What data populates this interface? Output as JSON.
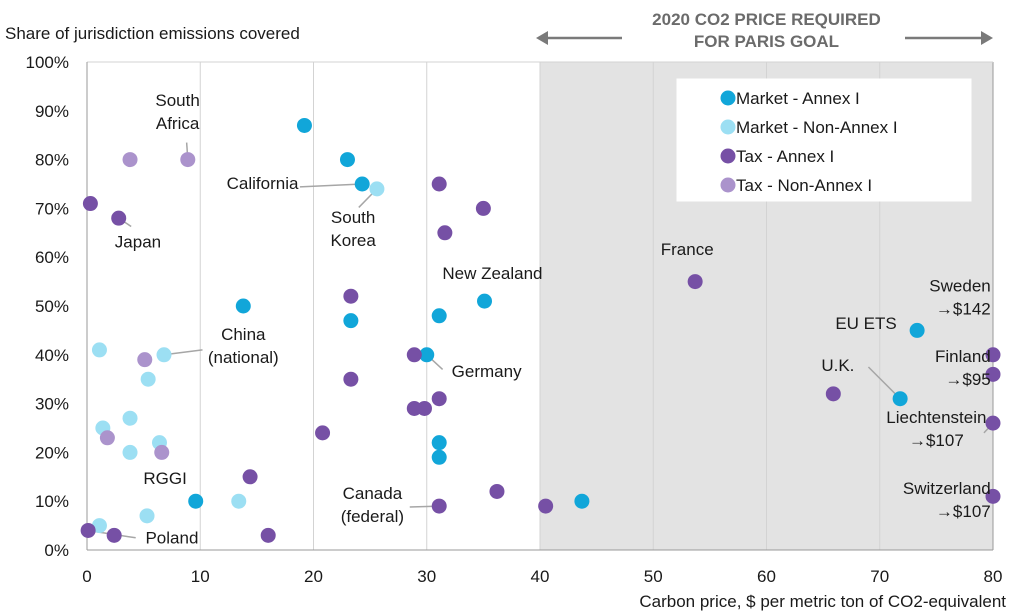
{
  "chart_data": {
    "type": "scatter",
    "title": "",
    "ylabel": "Share of jurisdiction emissions covered",
    "xlabel": "Carbon price, $ per metric ton of CO2-equivalent",
    "xlim": [
      0,
      80
    ],
    "ylim": [
      0,
      100
    ],
    "x_ticks": [
      "0",
      "10",
      "20",
      "30",
      "40",
      "50",
      "60",
      "70",
      "80"
    ],
    "y_ticks": [
      "0%",
      "10%",
      "20%",
      "30%",
      "40%",
      "50%",
      "60%",
      "70%",
      "80%",
      "90%",
      "100%"
    ],
    "grid": "vertical",
    "legend_position": "top-right",
    "shaded_region": {
      "x_range": [
        40,
        80
      ],
      "color": "#e3e3e3",
      "label_lines": [
        "2020 CO2 PRICE REQUIRED",
        "FOR PARIS GOAL"
      ]
    },
    "series": [
      {
        "name": "Market - Annex I",
        "color": "#11a6d9",
        "points": [
          [
            19.2,
            87
          ],
          [
            23,
            80
          ],
          [
            24.3,
            75
          ],
          [
            13.8,
            50
          ],
          [
            23.3,
            47
          ],
          [
            35.1,
            51
          ],
          [
            31.1,
            48
          ],
          [
            30,
            40
          ],
          [
            31.1,
            22
          ],
          [
            31.1,
            19
          ],
          [
            9.6,
            10
          ],
          [
            43.7,
            10
          ],
          [
            73.3,
            45
          ],
          [
            71.8,
            31
          ]
        ]
      },
      {
        "name": "Market - Non-Annex I",
        "color": "#9cdff3",
        "points": [
          [
            25.6,
            74
          ],
          [
            1.1,
            41
          ],
          [
            6.8,
            40
          ],
          [
            5.4,
            35
          ],
          [
            3.8,
            27
          ],
          [
            1.4,
            25
          ],
          [
            3.8,
            20
          ],
          [
            6.4,
            22
          ],
          [
            13.4,
            10
          ],
          [
            5.3,
            7
          ],
          [
            1.1,
            5
          ]
        ]
      },
      {
        "name": "Tax - Annex I",
        "color": "#7650a5",
        "points": [
          [
            31.1,
            75
          ],
          [
            35,
            70
          ],
          [
            31.6,
            65
          ],
          [
            0.3,
            71
          ],
          [
            2.8,
            68
          ],
          [
            23.3,
            52
          ],
          [
            28.9,
            40
          ],
          [
            23.3,
            35
          ],
          [
            31.1,
            31
          ],
          [
            29.8,
            29
          ],
          [
            28.9,
            29
          ],
          [
            20.8,
            24
          ],
          [
            14.4,
            15
          ],
          [
            36.2,
            12
          ],
          [
            31.1,
            9
          ],
          [
            40.5,
            9
          ],
          [
            16,
            3
          ],
          [
            2.4,
            3
          ],
          [
            0.1,
            4
          ],
          [
            53.7,
            55
          ],
          [
            80,
            40
          ],
          [
            80,
            36
          ],
          [
            80,
            26
          ],
          [
            80,
            11
          ],
          [
            65.9,
            32
          ]
        ]
      },
      {
        "name": "Tax - Non-Annex I",
        "color": "#ab93cc",
        "points": [
          [
            3.8,
            80
          ],
          [
            8.9,
            80
          ],
          [
            5.1,
            39
          ],
          [
            1.8,
            23
          ],
          [
            6.6,
            20
          ]
        ]
      }
    ],
    "annotations": [
      {
        "lines": [
          "South",
          "Africa"
        ],
        "x": 8,
        "y": 91,
        "anchor": "middle",
        "leader": [
          [
            8.8,
            83.5
          ],
          [
            8.9,
            80
          ]
        ]
      },
      {
        "lines": [
          "California"
        ],
        "x": 15.5,
        "y": 74,
        "anchor": "middle",
        "leader": [
          [
            18.8,
            74.4
          ],
          [
            24.3,
            75
          ]
        ]
      },
      {
        "lines": [
          "South",
          "Korea"
        ],
        "x": 23.5,
        "y": 67,
        "anchor": "middle",
        "leader": [
          [
            24,
            70.2
          ],
          [
            25.6,
            74
          ]
        ]
      },
      {
        "lines": [
          "Japan"
        ],
        "x": 4.5,
        "y": 62,
        "anchor": "middle",
        "leader": [
          [
            3.9,
            66.3
          ],
          [
            2.8,
            68
          ]
        ]
      },
      {
        "lines": [
          "New Zealand"
        ],
        "x": 35.8,
        "y": 55.5,
        "anchor": "middle",
        "leader": null
      },
      {
        "lines": [
          "France"
        ],
        "x": 53,
        "y": 60.5,
        "anchor": "middle",
        "leader": null
      },
      {
        "lines": [
          "Sweden",
          "→$142"
        ],
        "x": 79.8,
        "y": 53,
        "anchor": "end",
        "leader": null
      },
      {
        "lines": [
          "China",
          "(national)"
        ],
        "x": 13.8,
        "y": 43,
        "anchor": "middle",
        "leader": [
          [
            10.2,
            41
          ],
          [
            6.8,
            40
          ]
        ]
      },
      {
        "lines": [
          "EU ETS"
        ],
        "x": 71.5,
        "y": 45.3,
        "anchor": "end",
        "leader": null
      },
      {
        "lines": [
          "Germany"
        ],
        "x": 32.2,
        "y": 35.5,
        "anchor": "start",
        "leader": [
          [
            31.4,
            37
          ],
          [
            30,
            40
          ]
        ]
      },
      {
        "lines": [
          "Finland",
          "→$95"
        ],
        "x": 79.8,
        "y": 38.5,
        "anchor": "end",
        "leader": null
      },
      {
        "lines": [
          "U.K."
        ],
        "x": 66.3,
        "y": 36.7,
        "anchor": "middle",
        "leader": [
          [
            69,
            37.5
          ],
          [
            71.8,
            31
          ]
        ]
      },
      {
        "lines": [
          "Liechtenstein",
          "→$107"
        ],
        "x": 75,
        "y": 26,
        "anchor": "middle",
        "leader": [
          [
            79.2,
            24
          ],
          [
            80,
            26
          ]
        ]
      },
      {
        "lines": [
          "RGGI"
        ],
        "x": 6.9,
        "y": 13.5,
        "anchor": "middle",
        "leader": null
      },
      {
        "lines": [
          "Canada",
          "(federal)"
        ],
        "x": 25.2,
        "y": 10.5,
        "anchor": "middle",
        "leader": [
          [
            28.5,
            8.8
          ],
          [
            31.1,
            9
          ]
        ]
      },
      {
        "lines": [
          "Switzerland",
          "→$107"
        ],
        "x": 79.8,
        "y": 11.5,
        "anchor": "end",
        "leader": null
      },
      {
        "lines": [
          "Poland"
        ],
        "x": 7.5,
        "y": 1.3,
        "anchor": "middle",
        "leader": [
          [
            4.3,
            2.5
          ],
          [
            0.1,
            4
          ]
        ]
      }
    ]
  }
}
